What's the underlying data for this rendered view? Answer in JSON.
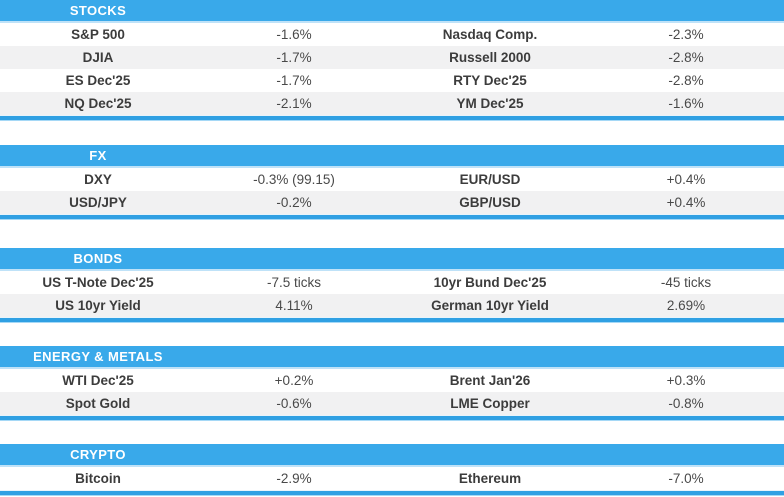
{
  "colors": {
    "header_bg": "#39a9ea",
    "header_edge": "#bfe2f8",
    "divider": "#30a0e3",
    "divider_edge": "#a5d8f6",
    "row_alt_bg": "#f1f1f2",
    "label_color": "#3c3c3c",
    "value_color": "#494949",
    "header_text": "#ffffff"
  },
  "sections": [
    {
      "id": "stocks",
      "title": "STOCKS",
      "rows": [
        {
          "l1": "S&P 500",
          "v1": "-1.6%",
          "l2": "Nasdaq Comp.",
          "v2": "-2.3%"
        },
        {
          "l1": "DJIA",
          "v1": "-1.7%",
          "l2": "Russell 2000",
          "v2": "-2.8%"
        },
        {
          "l1": "ES Dec'25",
          "v1": "-1.7%",
          "l2": "RTY Dec'25",
          "v2": "-2.8%"
        },
        {
          "l1": "NQ Dec'25",
          "v1": "-2.1%",
          "l2": "YM Dec'25",
          "v2": "-1.6%"
        }
      ]
    },
    {
      "id": "fx",
      "title": "FX",
      "rows": [
        {
          "l1": "DXY",
          "v1": "-0.3% (99.15)",
          "l2": "EUR/USD",
          "v2": "+0.4%"
        },
        {
          "l1": "USD/JPY",
          "v1": "-0.2%",
          "l2": "GBP/USD",
          "v2": "+0.4%"
        }
      ]
    },
    {
      "id": "bonds",
      "title": "BONDS",
      "rows": [
        {
          "l1": "US T-Note Dec'25",
          "v1": "-7.5 ticks",
          "l2": "10yr Bund Dec'25",
          "v2": "-45 ticks"
        },
        {
          "l1": "US 10yr Yield",
          "v1": "4.11%",
          "l2": "German 10yr Yield",
          "v2": "2.69%"
        }
      ]
    },
    {
      "id": "energy-metals",
      "title": "ENERGY & METALS",
      "rows": [
        {
          "l1": "WTI Dec'25",
          "v1": "+0.2%",
          "l2": "Brent Jan'26",
          "v2": "+0.3%"
        },
        {
          "l1": "Spot Gold",
          "v1": "-0.6%",
          "l2": "LME Copper",
          "v2": "-0.8%"
        }
      ]
    },
    {
      "id": "crypto",
      "title": "CRYPTO",
      "rows": [
        {
          "l1": "Bitcoin",
          "v1": "-2.9%",
          "l2": "Ethereum",
          "v2": "-7.0%"
        }
      ]
    }
  ]
}
